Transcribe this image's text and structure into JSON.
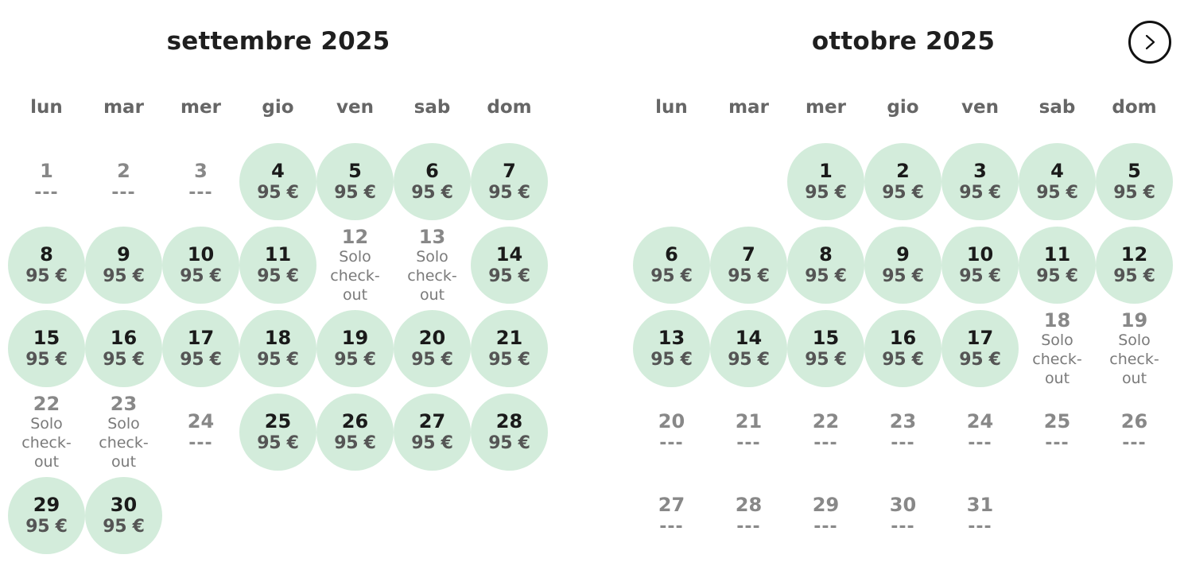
{
  "nav": {
    "next_icon": "chevron-right-icon"
  },
  "colors": {
    "available_bg": "#d3ecdb",
    "text_dark": "#1a1a1a",
    "text_muted": "#888888"
  },
  "months": [
    {
      "title": "settembre 2025",
      "weekdays": [
        "lun",
        "mar",
        "mer",
        "gio",
        "ven",
        "sab",
        "dom"
      ],
      "leading_blanks": 0,
      "days": [
        {
          "day": "1",
          "label": "---",
          "status": "unavailable"
        },
        {
          "day": "2",
          "label": "---",
          "status": "unavailable"
        },
        {
          "day": "3",
          "label": "---",
          "status": "unavailable"
        },
        {
          "day": "4",
          "label": "95 €",
          "status": "available"
        },
        {
          "day": "5",
          "label": "95 €",
          "status": "available"
        },
        {
          "day": "6",
          "label": "95 €",
          "status": "available"
        },
        {
          "day": "7",
          "label": "95 €",
          "status": "available"
        },
        {
          "day": "8",
          "label": "95 €",
          "status": "available"
        },
        {
          "day": "9",
          "label": "95 €",
          "status": "available"
        },
        {
          "day": "10",
          "label": "95 €",
          "status": "available"
        },
        {
          "day": "11",
          "label": "95 €",
          "status": "available"
        },
        {
          "day": "12",
          "label": "Solo check-out",
          "status": "checkout"
        },
        {
          "day": "13",
          "label": "Solo check-out",
          "status": "checkout"
        },
        {
          "day": "14",
          "label": "95 €",
          "status": "available"
        },
        {
          "day": "15",
          "label": "95 €",
          "status": "available"
        },
        {
          "day": "16",
          "label": "95 €",
          "status": "available"
        },
        {
          "day": "17",
          "label": "95 €",
          "status": "available"
        },
        {
          "day": "18",
          "label": "95 €",
          "status": "available"
        },
        {
          "day": "19",
          "label": "95 €",
          "status": "available"
        },
        {
          "day": "20",
          "label": "95 €",
          "status": "available"
        },
        {
          "day": "21",
          "label": "95 €",
          "status": "available"
        },
        {
          "day": "22",
          "label": "Solo check-out",
          "status": "checkout"
        },
        {
          "day": "23",
          "label": "Solo check-out",
          "status": "checkout"
        },
        {
          "day": "24",
          "label": "---",
          "status": "unavailable"
        },
        {
          "day": "25",
          "label": "95 €",
          "status": "available"
        },
        {
          "day": "26",
          "label": "95 €",
          "status": "available"
        },
        {
          "day": "27",
          "label": "95 €",
          "status": "available"
        },
        {
          "day": "28",
          "label": "95 €",
          "status": "available"
        },
        {
          "day": "29",
          "label": "95 €",
          "status": "available"
        },
        {
          "day": "30",
          "label": "95 €",
          "status": "available"
        }
      ]
    },
    {
      "title": "ottobre 2025",
      "weekdays": [
        "lun",
        "mar",
        "mer",
        "gio",
        "ven",
        "sab",
        "dom"
      ],
      "leading_blanks": 2,
      "days": [
        {
          "day": "1",
          "label": "95 €",
          "status": "available"
        },
        {
          "day": "2",
          "label": "95 €",
          "status": "available"
        },
        {
          "day": "3",
          "label": "95 €",
          "status": "available"
        },
        {
          "day": "4",
          "label": "95 €",
          "status": "available"
        },
        {
          "day": "5",
          "label": "95 €",
          "status": "available"
        },
        {
          "day": "6",
          "label": "95 €",
          "status": "available"
        },
        {
          "day": "7",
          "label": "95 €",
          "status": "available"
        },
        {
          "day": "8",
          "label": "95 €",
          "status": "available"
        },
        {
          "day": "9",
          "label": "95 €",
          "status": "available"
        },
        {
          "day": "10",
          "label": "95 €",
          "status": "available"
        },
        {
          "day": "11",
          "label": "95 €",
          "status": "available"
        },
        {
          "day": "12",
          "label": "95 €",
          "status": "available"
        },
        {
          "day": "13",
          "label": "95 €",
          "status": "available"
        },
        {
          "day": "14",
          "label": "95 €",
          "status": "available"
        },
        {
          "day": "15",
          "label": "95 €",
          "status": "available"
        },
        {
          "day": "16",
          "label": "95 €",
          "status": "available"
        },
        {
          "day": "17",
          "label": "95 €",
          "status": "available"
        },
        {
          "day": "18",
          "label": "Solo check-out",
          "status": "checkout"
        },
        {
          "day": "19",
          "label": "Solo check-out",
          "status": "checkout"
        },
        {
          "day": "20",
          "label": "---",
          "status": "unavailable"
        },
        {
          "day": "21",
          "label": "---",
          "status": "unavailable"
        },
        {
          "day": "22",
          "label": "---",
          "status": "unavailable"
        },
        {
          "day": "23",
          "label": "---",
          "status": "unavailable"
        },
        {
          "day": "24",
          "label": "---",
          "status": "unavailable"
        },
        {
          "day": "25",
          "label": "---",
          "status": "unavailable"
        },
        {
          "day": "26",
          "label": "---",
          "status": "unavailable"
        },
        {
          "day": "27",
          "label": "---",
          "status": "unavailable"
        },
        {
          "day": "28",
          "label": "---",
          "status": "unavailable"
        },
        {
          "day": "29",
          "label": "---",
          "status": "unavailable"
        },
        {
          "day": "30",
          "label": "---",
          "status": "unavailable"
        },
        {
          "day": "31",
          "label": "---",
          "status": "unavailable"
        }
      ]
    }
  ]
}
